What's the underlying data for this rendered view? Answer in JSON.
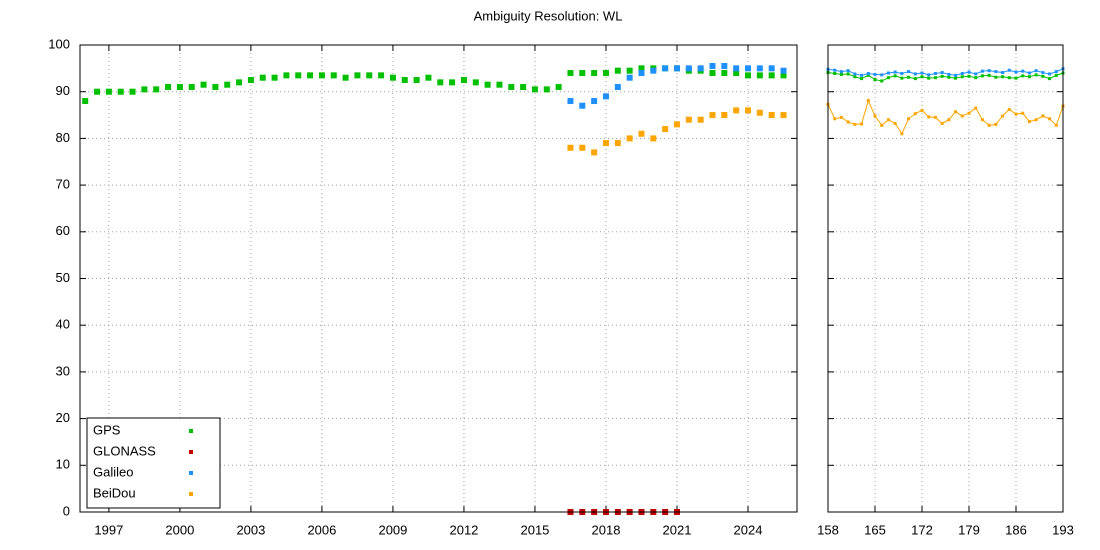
{
  "chart_data": [
    {
      "type": "scatter",
      "title": "Ambiguity Resolution: WL",
      "legend": "bottom left",
      "grid": true,
      "xlim": [
        1995.78,
        2026.07
      ],
      "xticks": [
        1997,
        2000,
        2003,
        2006,
        2009,
        2012,
        2015,
        2018,
        2021,
        2024
      ],
      "ylim": [
        0,
        100
      ],
      "yticks": [
        0,
        10,
        20,
        30,
        40,
        50,
        60,
        70,
        80,
        90,
        100
      ],
      "series": [
        {
          "name": "GPS",
          "color": "#00c000",
          "x": [
            1996,
            1996.5,
            1997,
            1997.5,
            1998,
            1998.5,
            1999,
            1999.5,
            2000,
            2000.5,
            2001,
            2001.5,
            2002,
            2002.5,
            2003,
            2003.5,
            2004,
            2004.5,
            2005,
            2005.5,
            2006,
            2006.5,
            2007,
            2007.5,
            2008,
            2008.5,
            2009,
            2009.5,
            2010,
            2010.5,
            2011,
            2011.5,
            2012,
            2012.5,
            2013,
            2013.5,
            2014,
            2014.5,
            2015,
            2015.5,
            2016,
            2016.5,
            2017,
            2017.5,
            2018,
            2018.5,
            2019,
            2019.5,
            2020,
            2020.5,
            2021,
            2021.5,
            2022,
            2022.5,
            2023,
            2023.5,
            2024,
            2024.5,
            2025,
            2025.5
          ],
          "values": [
            88,
            90,
            90,
            90,
            90,
            90.5,
            90.5,
            91,
            91,
            91,
            91.5,
            91,
            91.5,
            92,
            92.5,
            93,
            93,
            93.5,
            93.5,
            93.5,
            93.5,
            93.5,
            93,
            93.5,
            93.5,
            93.5,
            93,
            92.5,
            92.5,
            93,
            92,
            92,
            92.5,
            92,
            91.5,
            91.5,
            91,
            91,
            90.5,
            90.5,
            91,
            94,
            94,
            94,
            94,
            94.5,
            94.5,
            95,
            95,
            95,
            95,
            94.5,
            94.5,
            94,
            94,
            94,
            93.5,
            93.5,
            93.5,
            93.5
          ]
        },
        {
          "name": "GLONASS",
          "color": "#c00000",
          "x": [
            2016.5,
            2017,
            2017.5,
            2018,
            2018.5,
            2019,
            2019.5,
            2020,
            2020.5,
            2021
          ],
          "values": [
            0,
            0,
            0,
            0,
            0,
            0,
            0,
            0,
            0,
            0
          ]
        },
        {
          "name": "Galileo",
          "color": "#1e90ff",
          "x": [
            2016.5,
            2017,
            2017.5,
            2018,
            2018.5,
            2019,
            2019.5,
            2020,
            2020.5,
            2021,
            2021.5,
            2022,
            2022.5,
            2023,
            2023.5,
            2024,
            2024.5,
            2025,
            2025.5
          ],
          "values": [
            88,
            87,
            88,
            89,
            91,
            93,
            94,
            94.5,
            95,
            95,
            95,
            95,
            95.5,
            95.5,
            95,
            95,
            95,
            95,
            94.5
          ]
        },
        {
          "name": "BeiDou",
          "color": "#ffa500",
          "x": [
            2016.5,
            2017,
            2017.5,
            2018,
            2018.5,
            2019,
            2019.5,
            2020,
            2020.5,
            2021,
            2021.5,
            2022,
            2022.5,
            2023,
            2023.5,
            2024,
            2024.5,
            2025,
            2025.5
          ],
          "values": [
            78,
            78,
            77,
            79,
            79,
            80,
            81,
            80,
            82,
            83,
            84,
            84,
            85,
            85,
            86,
            86,
            85.5,
            85,
            85
          ]
        }
      ]
    },
    {
      "type": "line",
      "grid": true,
      "xlim": [
        158,
        193
      ],
      "xticks": [
        158,
        165,
        172,
        179,
        186,
        193
      ],
      "ylim": [
        0,
        100
      ],
      "x": [
        158,
        159,
        160,
        161,
        162,
        163,
        164,
        165,
        166,
        167,
        168,
        169,
        170,
        171,
        172,
        173,
        174,
        175,
        176,
        177,
        178,
        179,
        180,
        181,
        182,
        183,
        184,
        185,
        186,
        187,
        188,
        189,
        190,
        191,
        192,
        193
      ],
      "series": [
        {
          "color": "#00c000",
          "values": [
            94.1,
            93.9,
            93.7,
            93.8,
            93.2,
            92.8,
            93.5,
            92.6,
            92.3,
            93.0,
            93.4,
            92.9,
            93.1,
            92.8,
            93.2,
            92.9,
            93.0,
            93.3,
            93.1,
            92.9,
            93.2,
            93.3,
            93.0,
            93.4,
            93.5,
            93.1,
            93.2,
            93.0,
            92.9,
            93.4,
            93.2,
            93.6,
            93.3,
            92.8,
            93.5,
            94.0
          ]
        },
        {
          "color": "#1e90ff",
          "values": [
            94.8,
            94.6,
            94.3,
            94.5,
            93.8,
            93.5,
            93.9,
            93.7,
            93.6,
            94.0,
            94.2,
            93.9,
            94.3,
            93.8,
            94.0,
            93.6,
            93.9,
            94.1,
            93.7,
            93.5,
            93.9,
            94.2,
            93.8,
            94.4,
            94.5,
            94.3,
            94.1,
            94.6,
            94.2,
            94.4,
            94.0,
            94.5,
            94.1,
            93.8,
            94.3,
            94.9
          ]
        },
        {
          "color": "#ffa500",
          "values": [
            87.3,
            84.2,
            84.5,
            83.5,
            83.0,
            83.1,
            88.1,
            84.8,
            82.8,
            84.0,
            83.2,
            81.0,
            84.2,
            85.3,
            86.0,
            84.6,
            84.5,
            83.2,
            84.0,
            85.7,
            84.8,
            85.4,
            86.5,
            84.0,
            82.8,
            83.0,
            84.8,
            86.2,
            85.2,
            85.4,
            83.6,
            84.0,
            84.8,
            84.2,
            82.8,
            86.9
          ]
        }
      ]
    }
  ]
}
